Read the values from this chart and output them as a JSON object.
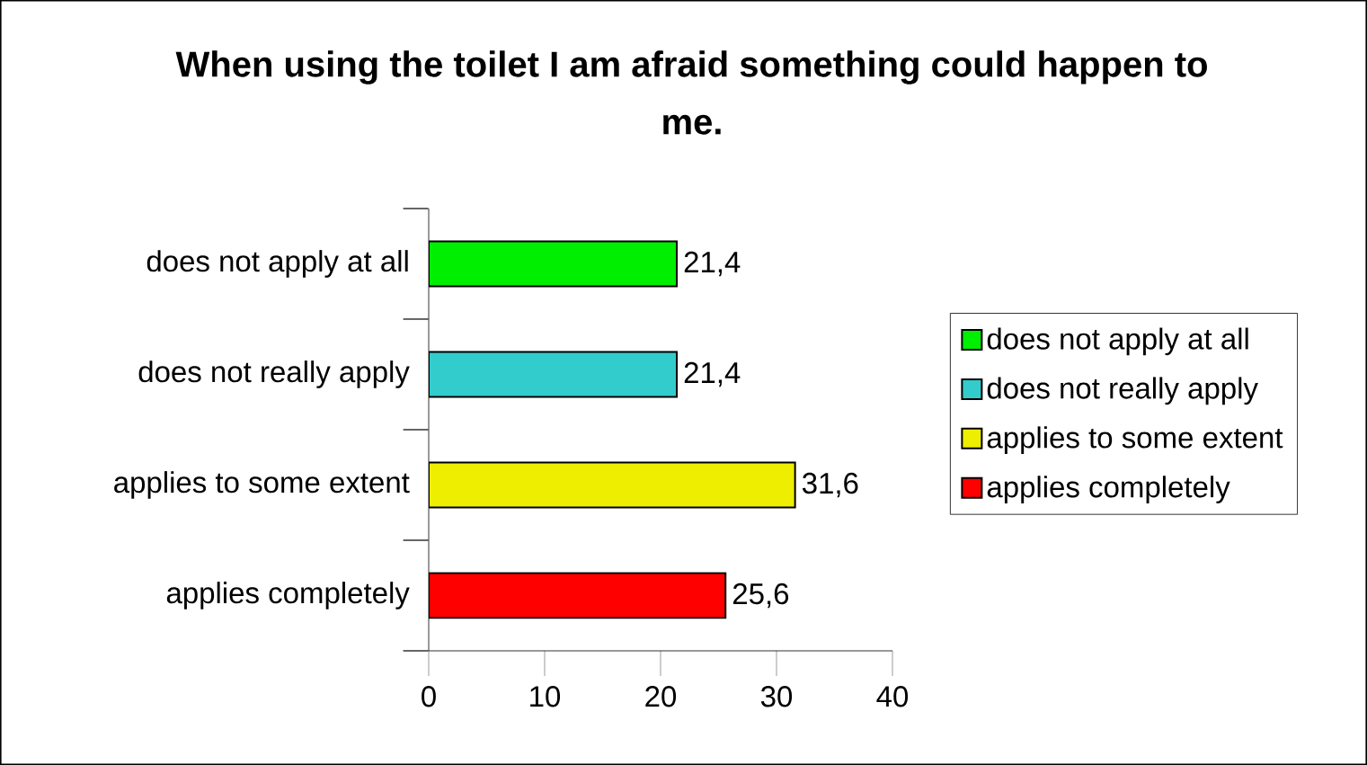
{
  "chart_data": {
    "type": "bar",
    "orientation": "horizontal",
    "title": "When using the toilet I am afraid something could happen to me.",
    "categories": [
      "does not apply at all",
      "does not really apply",
      "applies to some extent",
      "applies completely"
    ],
    "series": [
      {
        "name": "does not apply at all",
        "color": "#00ee00",
        "values": [
          21.4,
          null,
          null,
          null
        ],
        "value_labels": [
          "21,4",
          null,
          null,
          null
        ]
      },
      {
        "name": "does not really apply",
        "color": "#33cccc",
        "values": [
          null,
          21.4,
          null,
          null
        ],
        "value_labels": [
          null,
          "21,4",
          null,
          null
        ]
      },
      {
        "name": "applies to some extent",
        "color": "#eeee00",
        "values": [
          null,
          null,
          31.6,
          null
        ],
        "value_labels": [
          null,
          null,
          "31,6",
          null
        ]
      },
      {
        "name": "applies completely",
        "color": "#ff0000",
        "values": [
          null,
          null,
          null,
          25.6
        ],
        "value_labels": [
          null,
          null,
          null,
          "25,6"
        ]
      }
    ],
    "xlim": [
      0,
      40
    ],
    "xticks": [
      0,
      10,
      20,
      30,
      40
    ],
    "grid": false,
    "legend": "right"
  }
}
